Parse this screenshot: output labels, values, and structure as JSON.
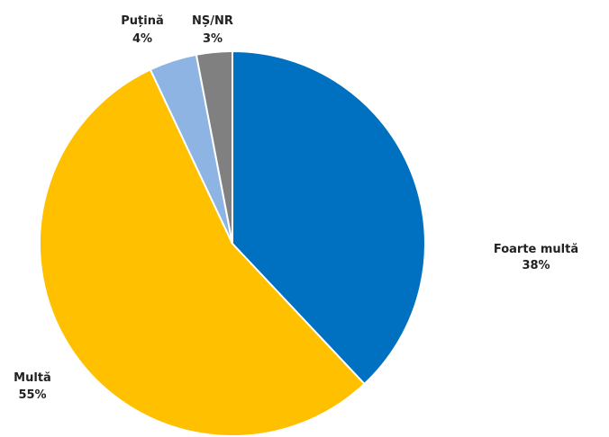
{
  "chart_data": {
    "type": "pie",
    "title": "",
    "slices": [
      {
        "label": "Foarte multă",
        "value": 38,
        "value_label": "38%",
        "color": "#0070C0"
      },
      {
        "label": "Multă",
        "value": 55,
        "value_label": "55%",
        "color": "#FFC000"
      },
      {
        "label": "Puțină",
        "value": 4,
        "value_label": "4%",
        "color": "#8EB4E3"
      },
      {
        "label": "NȘ/NR",
        "value": 3,
        "value_label": "3%",
        "color": "#808080"
      }
    ],
    "start_angle": "12 o'clock",
    "direction": "clockwise",
    "legend": "none"
  }
}
